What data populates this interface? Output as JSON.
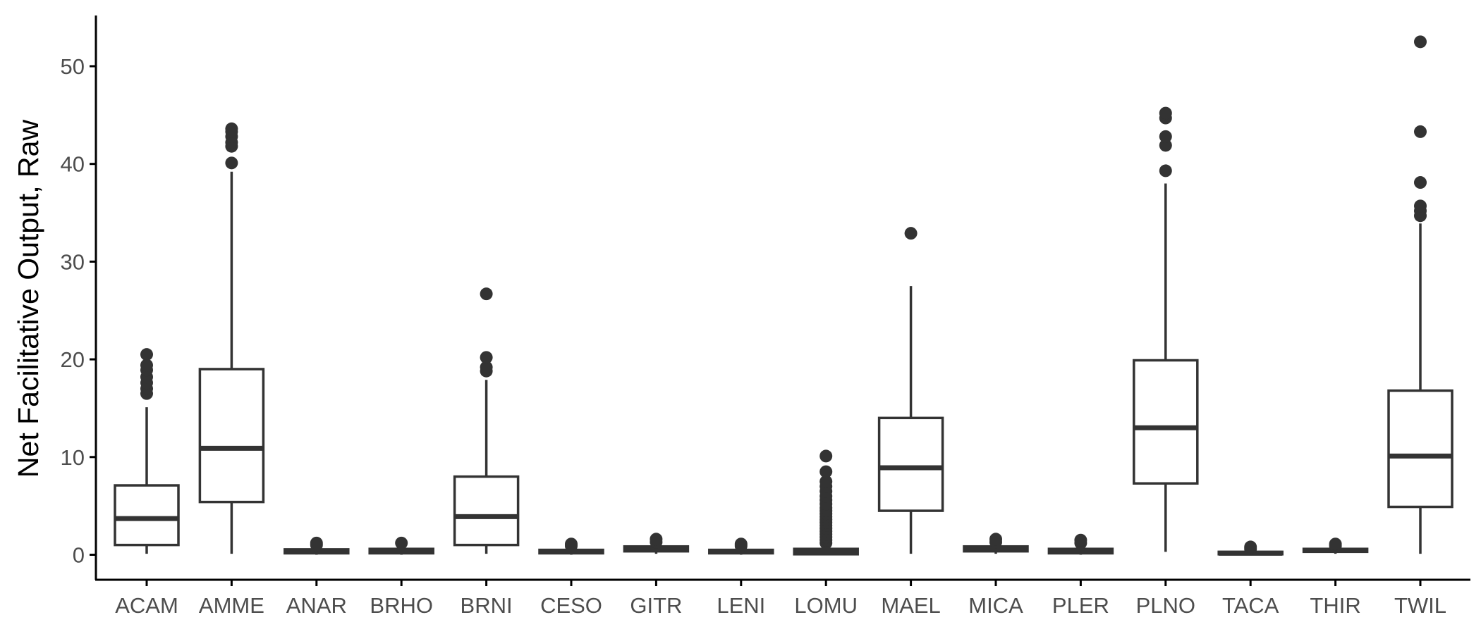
{
  "chart_data": {
    "type": "boxplot",
    "title": "",
    "xlabel": "",
    "ylabel": "Net Facilitative Output, Raw",
    "ylim": [
      -2.5,
      55
    ],
    "yticks": [
      0,
      10,
      20,
      30,
      40,
      50
    ],
    "ytick_labels": [
      "0",
      "10",
      "20",
      "30",
      "40",
      "50"
    ],
    "grid": false,
    "categories": [
      "ACAM",
      "AMME",
      "ANAR",
      "BRHO",
      "BRNI",
      "CESO",
      "GITR",
      "LENI",
      "LOMU",
      "MAEL",
      "MICA",
      "PLER",
      "PLNO",
      "TACA",
      "THIR",
      "TWIL"
    ],
    "boxes": [
      {
        "category": "ACAM",
        "min": 0.1,
        "q1": 1.0,
        "median": 3.7,
        "q3": 7.1,
        "max": 15.1,
        "outliers": [
          16.5,
          17.0,
          17.6,
          18.2,
          18.9,
          19.4,
          20.5
        ]
      },
      {
        "category": "AMME",
        "min": 0.1,
        "q1": 5.4,
        "median": 10.9,
        "q3": 19.0,
        "max": 39.2,
        "outliers": [
          40.1,
          41.8,
          42.2,
          42.8,
          43.3,
          43.6
        ]
      },
      {
        "category": "ANAR",
        "min": 0.0,
        "q1": 0.15,
        "median": 0.3,
        "q3": 0.55,
        "max": 0.9,
        "outliers": [
          1.0,
          1.2
        ]
      },
      {
        "category": "BRHO",
        "min": 0.0,
        "q1": 0.15,
        "median": 0.35,
        "q3": 0.6,
        "max": 1.0,
        "outliers": [
          1.2
        ]
      },
      {
        "category": "BRNI",
        "min": 0.1,
        "q1": 1.0,
        "median": 3.9,
        "q3": 8.0,
        "max": 17.9,
        "outliers": [
          18.8,
          19.2,
          20.2,
          26.7
        ]
      },
      {
        "category": "CESO",
        "min": 0.0,
        "q1": 0.15,
        "median": 0.3,
        "q3": 0.5,
        "max": 0.8,
        "outliers": [
          0.9,
          1.1
        ]
      },
      {
        "category": "GITR",
        "min": 0.1,
        "q1": 0.35,
        "median": 0.6,
        "q3": 0.85,
        "max": 1.2,
        "outliers": [
          1.3,
          1.6
        ]
      },
      {
        "category": "LENI",
        "min": 0.0,
        "q1": 0.15,
        "median": 0.3,
        "q3": 0.5,
        "max": 0.8,
        "outliers": [
          0.9,
          1.1
        ]
      },
      {
        "category": "LOMU",
        "min": 0.0,
        "q1": 0.05,
        "median": 0.3,
        "q3": 0.6,
        "max": 1.0,
        "outliers": [
          1.2,
          1.5,
          1.8,
          2.1,
          2.4,
          2.7,
          3.0,
          3.3,
          3.6,
          3.9,
          4.2,
          4.5,
          4.8,
          5.2,
          5.6,
          6.0,
          6.5,
          7.0,
          7.5,
          8.5,
          10.1
        ]
      },
      {
        "category": "MAEL",
        "min": 0.1,
        "q1": 4.5,
        "median": 8.9,
        "q3": 14.0,
        "max": 27.5,
        "outliers": [
          32.9
        ]
      },
      {
        "category": "MICA",
        "min": 0.1,
        "q1": 0.35,
        "median": 0.6,
        "q3": 0.85,
        "max": 1.2,
        "outliers": [
          1.3,
          1.6
        ]
      },
      {
        "category": "PLER",
        "min": 0.0,
        "q1": 0.15,
        "median": 0.3,
        "q3": 0.6,
        "max": 1.0,
        "outliers": [
          1.2,
          1.5
        ]
      },
      {
        "category": "PLNO",
        "min": 0.3,
        "q1": 7.3,
        "median": 13.0,
        "q3": 19.9,
        "max": 38.0,
        "outliers": [
          39.3,
          41.9,
          42.8,
          44.7,
          45.2
        ]
      },
      {
        "category": "TACA",
        "min": 0.0,
        "q1": 0.05,
        "median": 0.15,
        "q3": 0.3,
        "max": 0.5,
        "outliers": [
          0.6,
          0.8
        ]
      },
      {
        "category": "THIR",
        "min": 0.1,
        "q1": 0.3,
        "median": 0.45,
        "q3": 0.6,
        "max": 0.8,
        "outliers": [
          0.9,
          1.1
        ]
      },
      {
        "category": "TWIL",
        "min": 0.1,
        "q1": 4.9,
        "median": 10.1,
        "q3": 16.8,
        "max": 33.9,
        "outliers": [
          34.7,
          35.2,
          35.7,
          38.1,
          43.3,
          52.5
        ]
      }
    ],
    "colors": {
      "box_stroke": "#333333",
      "box_fill": "#ffffff",
      "point": "#333333",
      "axis": "#000000",
      "tick_label": "#4d4d4d"
    }
  }
}
